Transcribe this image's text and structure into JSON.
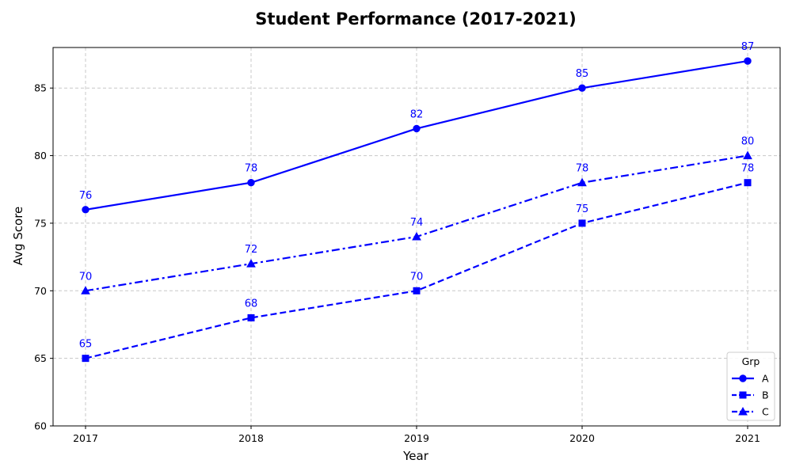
{
  "chart_data": {
    "type": "line",
    "title": "Student Performance (2017-2021)",
    "xlabel": "Year",
    "ylabel": "Avg Score",
    "categories": [
      "2017",
      "2018",
      "2019",
      "2020",
      "2021"
    ],
    "ylim": [
      60,
      88
    ],
    "yticks": [
      60,
      65,
      70,
      75,
      80,
      85
    ],
    "grid": true,
    "color": "#0000ff",
    "legend": {
      "title": "Grp",
      "placement": "lower-right"
    },
    "series": [
      {
        "name": "A",
        "values": [
          76,
          78,
          82,
          85,
          87
        ],
        "marker": "circle",
        "linestyle": "solid"
      },
      {
        "name": "B",
        "values": [
          65,
          68,
          70,
          75,
          78
        ],
        "marker": "square",
        "linestyle": "dashed"
      },
      {
        "name": "C",
        "values": [
          70,
          72,
          74,
          78,
          80
        ],
        "marker": "triangle",
        "linestyle": "dashdot"
      }
    ]
  }
}
